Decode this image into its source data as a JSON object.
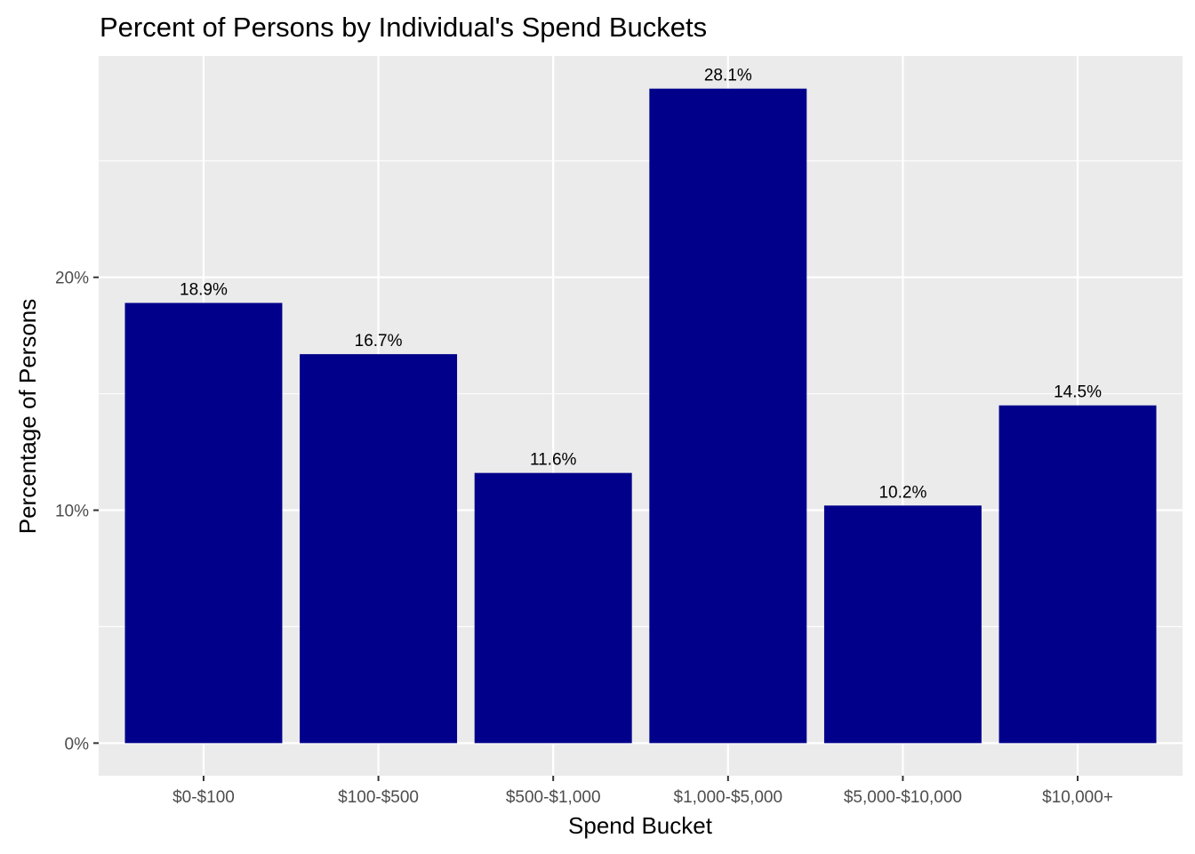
{
  "chart_data": {
    "type": "bar",
    "title": "Percent of Persons by Individual's Spend Buckets",
    "xlabel": "Spend Bucket",
    "ylabel": "Percentage of Persons",
    "categories": [
      "$0-$100",
      "$100-$500",
      "$500-$1,000",
      "$1,000-$5,000",
      "$5,000-$10,000",
      "$10,000+"
    ],
    "values": [
      18.9,
      16.7,
      11.6,
      28.1,
      10.2,
      14.5
    ],
    "data_labels": [
      "18.9%",
      "16.7%",
      "11.6%",
      "28.1%",
      "10.2%",
      "14.5%"
    ],
    "y_ticks": [
      0,
      10,
      20
    ],
    "y_tick_labels": [
      "0%",
      "10%",
      "20%"
    ],
    "y_minor_ticks": [
      5,
      15,
      25
    ],
    "ylim": [
      -1.4,
      29.5
    ],
    "grid": true,
    "legend": "none",
    "colors": {
      "bar": "#00008b",
      "panel_background": "#ebebeb",
      "grid": "#ffffff",
      "tick_label": "#4d4d4d",
      "tick_mark": "#333333"
    }
  }
}
